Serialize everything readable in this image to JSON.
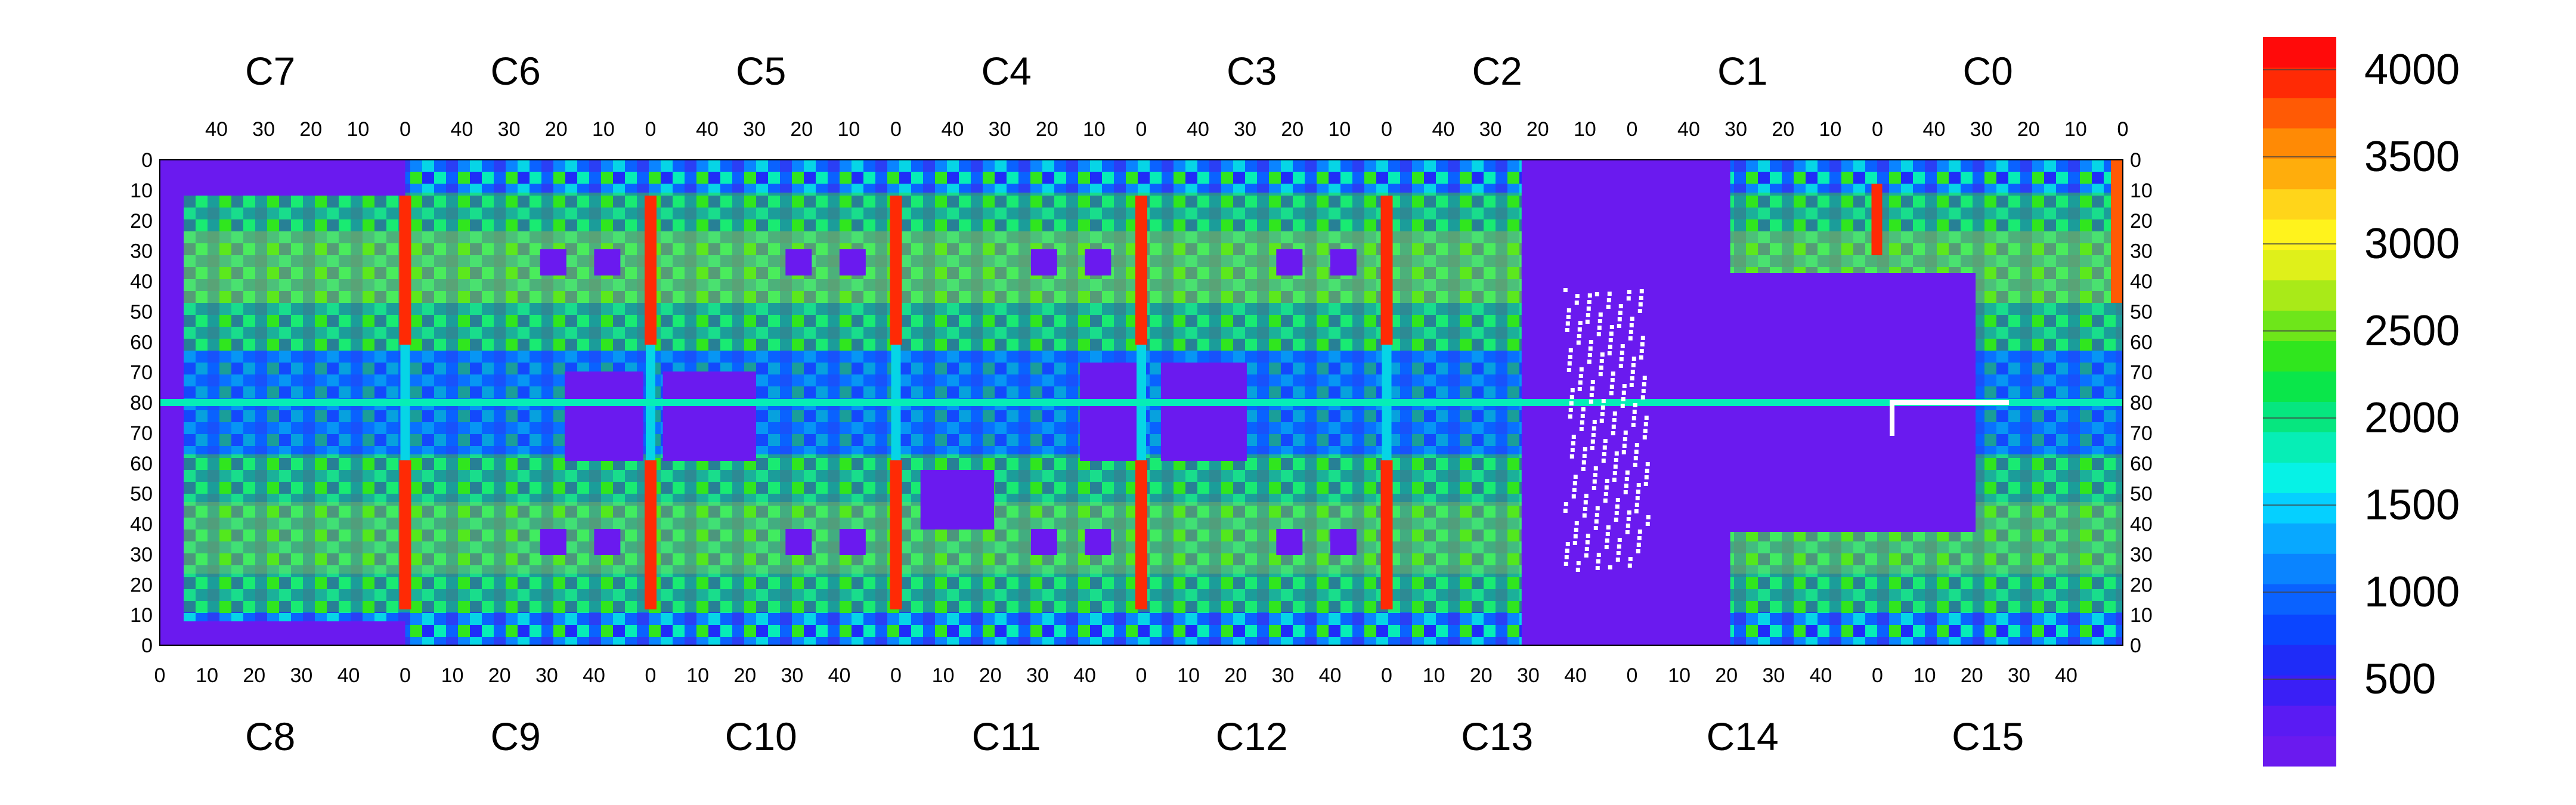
{
  "chart_data": {
    "type": "heatmap",
    "title": "",
    "top_chips": [
      "C7",
      "C6",
      "C5",
      "C4",
      "C3",
      "C2",
      "C1",
      "C0"
    ],
    "bottom_chips": [
      "C8",
      "C9",
      "C10",
      "C11",
      "C12",
      "C13",
      "C14",
      "C15"
    ],
    "top_tick_labels": [
      "40",
      "30",
      "20",
      "10",
      "0"
    ],
    "bottom_tick_labels": [
      "0",
      "10",
      "20",
      "30",
      "40"
    ],
    "y_tick_labels": [
      "0",
      "10",
      "20",
      "30",
      "40",
      "50",
      "60",
      "70",
      "80",
      "70",
      "60",
      "50",
      "40",
      "30",
      "20",
      "10",
      "0"
    ],
    "colorbar": {
      "min": 0,
      "max": 4000,
      "tick_labels": [
        "4000",
        "3500",
        "3000",
        "2500",
        "2000",
        "1500",
        "1000",
        "500"
      ],
      "tick_values": [
        4000,
        3500,
        3000,
        2500,
        2000,
        1500,
        1000,
        500
      ],
      "levels": 20,
      "colors": [
        "#6a1aef",
        "#5a1bf3",
        "#3a1ff6",
        "#1f2cf8",
        "#0b45ff",
        "#0a62ff",
        "#0a84ff",
        "#08a8ff",
        "#05d0ff",
        "#06f2e6",
        "#06eeb6",
        "#06e67f",
        "#0ae64a",
        "#30e61e",
        "#6ee61a",
        "#a9ea18",
        "#dff01a",
        "#fff31c",
        "#ffd51a",
        "#ffad0c",
        "#ff8a05",
        "#ff5a05",
        "#ff2a05",
        "#ff0a0a"
      ]
    },
    "grid": {
      "cols_per_chip": 52,
      "rows_per_half": 80
    }
  }
}
